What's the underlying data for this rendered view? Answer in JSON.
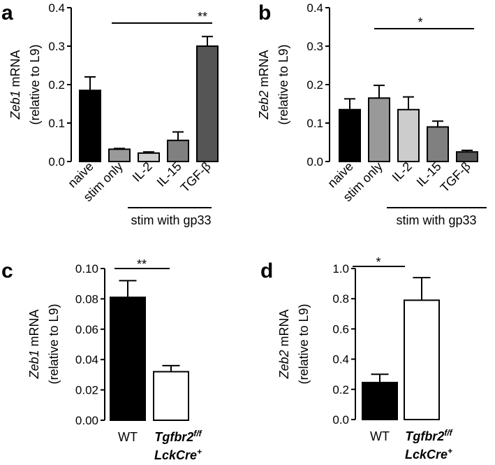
{
  "chart_data": [
    {
      "panel": "a",
      "type": "bar",
      "ylabel_gene": "Zeb1",
      "ylabel_rest": " mRNA",
      "ylabel_line2": "(relative to L9)",
      "categories": [
        "naive",
        "stim only",
        "IL-2",
        "IL-15",
        "TGF-β"
      ],
      "values": [
        0.185,
        0.032,
        0.022,
        0.055,
        0.3
      ],
      "errors": [
        0.035,
        0.002,
        0.003,
        0.022,
        0.025
      ],
      "colors": [
        "#000000",
        "#999999",
        "#cccccc",
        "#808080",
        "#555555"
      ],
      "ylim": [
        0,
        0.4
      ],
      "yticks": [
        "0.0",
        "0.1",
        "0.2",
        "0.3",
        "0.4"
      ],
      "significance": "**",
      "group_label": "stim with gp33"
    },
    {
      "panel": "b",
      "type": "bar",
      "ylabel_gene": "Zeb2",
      "ylabel_rest": " mRNA",
      "ylabel_line2": "(relative to L9)",
      "categories": [
        "naive",
        "stim only",
        "IL-2",
        "IL-15",
        "TGF-β"
      ],
      "values": [
        0.135,
        0.165,
        0.135,
        0.09,
        0.025
      ],
      "errors": [
        0.028,
        0.033,
        0.033,
        0.015,
        0.004
      ],
      "colors": [
        "#000000",
        "#999999",
        "#cccccc",
        "#808080",
        "#555555"
      ],
      "ylim": [
        0,
        0.4
      ],
      "yticks": [
        "0.0",
        "0.1",
        "0.2",
        "0.3",
        "0.4"
      ],
      "significance": "*",
      "group_label": "stim with gp33"
    },
    {
      "panel": "c",
      "type": "bar",
      "ylabel_gene": "Zeb1",
      "ylabel_rest": " mRNA",
      "ylabel_line2": "(relative to L9)",
      "categories": [
        "WT",
        "Tgfbr2 f/f LckCre+"
      ],
      "cat1_label": "WT",
      "cat2_main": "Tgfbr2",
      "cat2_sup": "f/f",
      "cat2_line2": "LckCre",
      "cat2_line2_sup": "+",
      "values": [
        0.081,
        0.032
      ],
      "errors": [
        0.011,
        0.004
      ],
      "colors": [
        "#000000",
        "#ffffff"
      ],
      "ylim": [
        0,
        0.1
      ],
      "yticks": [
        "0.00",
        "0.02",
        "0.04",
        "0.06",
        "0.08",
        "0.10"
      ],
      "significance": "**"
    },
    {
      "panel": "d",
      "type": "bar",
      "ylabel_gene": "Zeb2",
      "ylabel_rest": " mRNA",
      "ylabel_line2": "(relative to L9)",
      "categories": [
        "WT",
        "Tgfbr2 f/f LckCre+"
      ],
      "cat1_label": "WT",
      "cat2_main": "Tgfbr2",
      "cat2_sup": "f/f",
      "cat2_line2": "LckCre",
      "cat2_line2_sup": "+",
      "values": [
        0.245,
        0.79
      ],
      "errors": [
        0.055,
        0.15
      ],
      "colors": [
        "#000000",
        "#ffffff"
      ],
      "ylim": [
        0,
        1.0
      ],
      "yticks": [
        "0.0",
        "0.2",
        "0.4",
        "0.6",
        "0.8",
        "1.0"
      ],
      "significance": "*"
    }
  ]
}
